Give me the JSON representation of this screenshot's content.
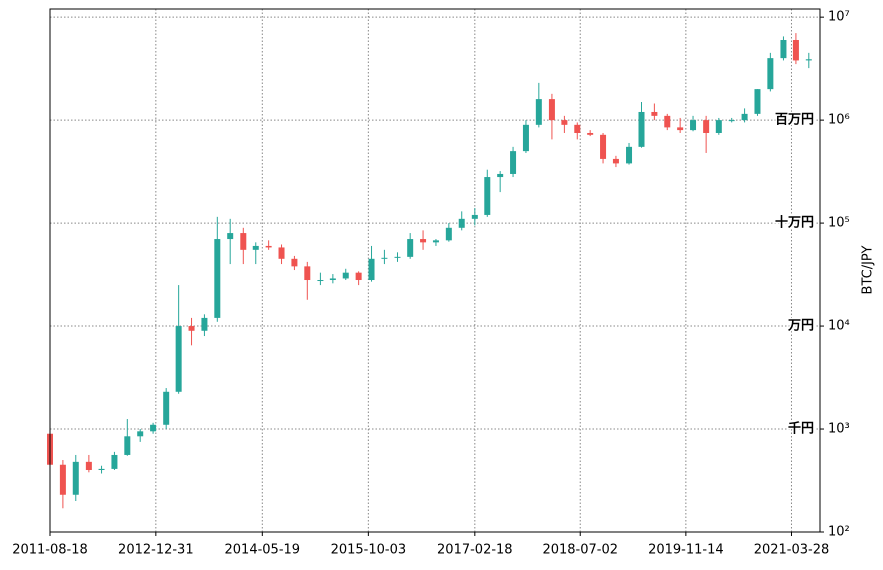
{
  "chart_data": {
    "type": "candlestick",
    "y_label": "BTC/JPY",
    "log_scale": true,
    "grid": true,
    "up_color": "#26a69a",
    "down_color": "#ef5350",
    "xlim": [
      "2011-08-18",
      "2021-08-10"
    ],
    "xticks": [
      "2011-08-18",
      "2012-12-31",
      "2014-05-19",
      "2015-10-03",
      "2017-02-18",
      "2018-07-02",
      "2019-11-14",
      "2021-03-28"
    ],
    "ylim": [
      100,
      12000000
    ],
    "yticks": [
      {
        "value": 100,
        "label": "10²"
      },
      {
        "value": 1000,
        "label": "10³"
      },
      {
        "value": 10000,
        "label": "10⁴"
      },
      {
        "value": 100000,
        "label": "10⁵"
      },
      {
        "value": 1000000,
        "label": "10⁶"
      },
      {
        "value": 10000000,
        "label": "10⁷"
      }
    ],
    "annotations": [
      {
        "text": "千円",
        "value": 1000
      },
      {
        "text": "万円",
        "value": 10000
      },
      {
        "text": "十万円",
        "value": 100000
      },
      {
        "text": "百万円",
        "value": 1000000
      }
    ],
    "dates": [
      "2011-08-18",
      "2011-10-18",
      "2011-12-18",
      "2012-02-18",
      "2012-04-18",
      "2012-06-18",
      "2012-08-18",
      "2012-10-18",
      "2012-12-18",
      "2013-02-18",
      "2013-04-18",
      "2013-06-18",
      "2013-08-18",
      "2013-10-18",
      "2013-12-18",
      "2014-02-18",
      "2014-04-18",
      "2014-06-18",
      "2014-08-18",
      "2014-10-18",
      "2014-12-18",
      "2015-02-18",
      "2015-04-18",
      "2015-06-18",
      "2015-08-18",
      "2015-10-18",
      "2015-12-18",
      "2016-02-18",
      "2016-04-18",
      "2016-06-18",
      "2016-08-18",
      "2016-10-18",
      "2016-12-18",
      "2017-02-18",
      "2017-04-18",
      "2017-06-18",
      "2017-08-18",
      "2017-10-18",
      "2017-12-18",
      "2018-02-18",
      "2018-04-18",
      "2018-06-18",
      "2018-08-18",
      "2018-10-18",
      "2018-12-18",
      "2019-02-18",
      "2019-04-18",
      "2019-06-18",
      "2019-08-18",
      "2019-10-18",
      "2019-12-18",
      "2020-02-18",
      "2020-04-18",
      "2020-06-18",
      "2020-08-18",
      "2020-10-18",
      "2020-12-18",
      "2021-02-18",
      "2021-04-18",
      "2021-06-18"
    ],
    "open": [
      900,
      450,
      230,
      480,
      400,
      410,
      560,
      850,
      950,
      1100,
      2300,
      10000,
      9000,
      12000,
      70000,
      80000,
      55000,
      60000,
      58000,
      45000,
      38000,
      28000,
      28000,
      29000,
      33000,
      28000,
      45000,
      46000,
      47000,
      70000,
      65000,
      68000,
      90000,
      110000,
      120000,
      280000,
      300000,
      500000,
      900000,
      1600000,
      1000000,
      900000,
      750000,
      720000,
      420000,
      380000,
      550000,
      1200000,
      1100000,
      850000,
      800000,
      1000000,
      750000,
      1000000,
      1000000,
      1150000,
      2000000,
      4000000,
      6000000,
      3800000
    ],
    "high": [
      1200,
      500,
      560,
      560,
      440,
      600,
      1250,
      1000,
      1150,
      2500,
      25000,
      12000,
      13000,
      115000,
      110000,
      90000,
      65000,
      68000,
      62000,
      48000,
      42000,
      33000,
      32000,
      36000,
      34000,
      60000,
      55000,
      52000,
      80000,
      85000,
      70000,
      100000,
      130000,
      140000,
      330000,
      320000,
      550000,
      1000000,
      2300000,
      1800000,
      1100000,
      950000,
      800000,
      750000,
      450000,
      600000,
      1500000,
      1450000,
      1150000,
      1050000,
      1100000,
      1100000,
      1050000,
      1050000,
      1300000,
      2000000,
      4500000,
      6500000,
      7000000,
      4500000
    ],
    "low": [
      400,
      170,
      200,
      380,
      370,
      400,
      550,
      750,
      900,
      1000,
      2200,
      6500,
      8000,
      11000,
      40000,
      40000,
      40000,
      55000,
      40000,
      35000,
      18000,
      25000,
      26000,
      28000,
      25000,
      27000,
      40000,
      42000,
      45000,
      55000,
      60000,
      66000,
      85000,
      95000,
      115000,
      200000,
      280000,
      480000,
      850000,
      650000,
      750000,
      650000,
      700000,
      380000,
      350000,
      370000,
      540000,
      1000000,
      800000,
      750000,
      780000,
      480000,
      720000,
      950000,
      950000,
      1100000,
      1900000,
      3800000,
      3500000,
      3200000
    ],
    "close": [
      450,
      230,
      480,
      400,
      410,
      560,
      850,
      950,
      1100,
      2300,
      10000,
      9000,
      12000,
      70000,
      80000,
      55000,
      60000,
      58000,
      45000,
      38000,
      28000,
      28000,
      29000,
      33000,
      28000,
      45000,
      46000,
      47000,
      70000,
      65000,
      68000,
      90000,
      110000,
      120000,
      280000,
      300000,
      500000,
      900000,
      1600000,
      1000000,
      900000,
      750000,
      720000,
      420000,
      380000,
      550000,
      1200000,
      1100000,
      850000,
      800000,
      1000000,
      750000,
      1000000,
      1000000,
      1150000,
      2000000,
      4000000,
      6000000,
      3800000,
      3900000
    ]
  }
}
